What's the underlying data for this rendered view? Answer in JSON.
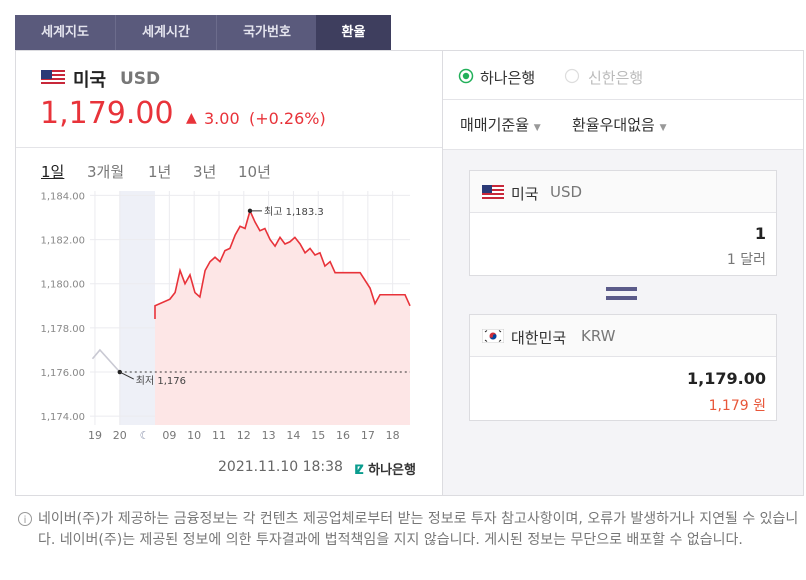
{
  "tabs": [
    "세계지도",
    "세계시간",
    "국가번호",
    "환율"
  ],
  "currency": {
    "name": "미국",
    "code": "USD",
    "price": "1,179.00",
    "change": "3.00",
    "change_pct": "(+0.26%)"
  },
  "periods": [
    "1일",
    "3개월",
    "1년",
    "3년",
    "10년"
  ],
  "chart_data": {
    "type": "line",
    "ylim": [
      1173.6,
      1184.2
    ],
    "yticks": [
      {
        "value": 1174,
        "label": "1,174.00"
      },
      {
        "value": 1176,
        "label": "1,176.00"
      },
      {
        "value": 1178,
        "label": "1,178.00"
      },
      {
        "value": 1180,
        "label": "1,180.00"
      },
      {
        "value": 1182,
        "label": "1,182.00"
      },
      {
        "value": 1184,
        "label": "1,184.00"
      }
    ],
    "xlim": [
      -0.2,
      12.7
    ],
    "xticks": [
      {
        "value": 0,
        "label": "19"
      },
      {
        "value": 1,
        "label": "20"
      },
      {
        "value": 3,
        "label": "09"
      },
      {
        "value": 4,
        "label": "10"
      },
      {
        "value": 5,
        "label": "11"
      },
      {
        "value": 6,
        "label": "12"
      },
      {
        "value": 7,
        "label": "13"
      },
      {
        "value": 8,
        "label": "14"
      },
      {
        "value": 9,
        "label": "15"
      },
      {
        "value": 10,
        "label": "16"
      },
      {
        "value": 11,
        "label": "17"
      },
      {
        "value": 12,
        "label": "18"
      }
    ],
    "grid": true,
    "shaded_range": [
      1,
      2.42
    ],
    "series": [
      {
        "color": "#c9c9d3",
        "x": [
          -0.1,
          0.2,
          1
        ],
        "values": [
          1176.6,
          1177.0,
          1176.0
        ]
      },
      {
        "color": "#e8333a",
        "fill": "#fde6e6",
        "x": [
          2.42,
          2.42,
          3.02,
          3.23,
          3.43,
          3.63,
          3.83,
          4.03,
          4.23,
          4.44,
          4.64,
          4.84,
          5.04,
          5.24,
          5.44,
          5.65,
          5.85,
          6.05,
          6.25,
          6.45,
          6.65,
          6.85,
          7.06,
          7.26,
          7.46,
          7.66,
          7.86,
          8.06,
          8.27,
          8.47,
          8.67,
          8.87,
          9.07,
          9.27,
          9.48,
          9.68,
          9.88,
          10.69,
          11.09,
          11.29,
          11.49,
          12.5,
          12.7
        ],
        "values": [
          1178.4,
          1179.0,
          1179.3,
          1179.6,
          1180.6,
          1180.0,
          1180.4,
          1179.6,
          1179.4,
          1180.6,
          1181.0,
          1181.2,
          1181.0,
          1181.5,
          1181.6,
          1182.2,
          1182.6,
          1182.5,
          1183.3,
          1182.8,
          1182.4,
          1182.5,
          1182.0,
          1181.7,
          1182.1,
          1181.8,
          1181.9,
          1182.1,
          1181.8,
          1181.4,
          1181.6,
          1181.3,
          1181.4,
          1180.8,
          1181.0,
          1180.5,
          1180.5,
          1180.5,
          1179.8,
          1179.1,
          1179.5,
          1179.5,
          1179.0
        ]
      }
    ],
    "annotations": [
      {
        "text": "최고 1,183.3",
        "x": 6.25,
        "y": 1183.3
      },
      {
        "text": "최저 1,176",
        "x": 1,
        "y": 1176
      }
    ]
  },
  "timestamp": "2021.11.10 18:38",
  "bank_logo": "하나은행",
  "banks": [
    "하나은행",
    "신한은행"
  ],
  "dropdowns": [
    "매매기준율",
    "환율우대없음"
  ],
  "from": {
    "name": "미국",
    "code": "USD",
    "amount": "1",
    "amount_text": "1 달러"
  },
  "to": {
    "name": "대한민국",
    "code": "KRW",
    "amount": "1,179.00",
    "amount_text": "1,179 원"
  },
  "notice": "네이버(주)가 제공하는 금융정보는 각 컨텐츠 제공업체로부터 받는 정보로 투자 참고사항이며, 오류가 발생하거나 지연될 수 있습니다. 네이버(주)는 제공된 정보에 의한 투자결과에 법적책임을 지지 않습니다. 게시된 정보는 무단으로 배포할 수 없습니다."
}
